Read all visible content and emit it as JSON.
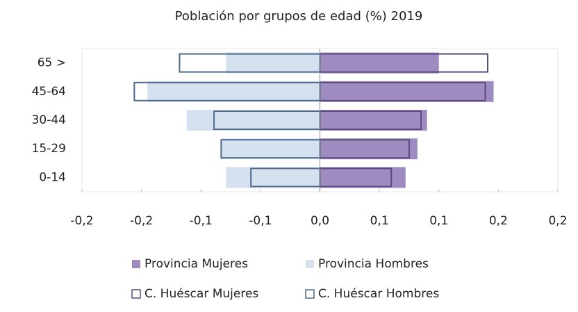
{
  "chart_data": {
    "type": "bar",
    "title": "Población por grupos de edad (%) 2019",
    "categories": [
      "65 >",
      "45-64",
      "30-44",
      "15-29",
      "0-14"
    ],
    "series": [
      {
        "name": "Provincia Mujeres",
        "color": "#9e8cc0",
        "values": [
          0.1,
          0.146,
          0.09,
          0.082,
          0.072
        ]
      },
      {
        "name": "Provincia Hombres",
        "color": "#d6e1f0",
        "values": [
          -0.079,
          -0.145,
          -0.112,
          -0.083,
          -0.079
        ]
      },
      {
        "name": "C. Huéscar Mujeres",
        "color": "#5b4a7e",
        "values": [
          0.141,
          0.139,
          0.085,
          0.075,
          0.06
        ]
      },
      {
        "name": "C. Huéscar Hombres",
        "color": "#4e6a8c",
        "values": [
          -0.118,
          -0.156,
          -0.089,
          -0.083,
          -0.058
        ]
      }
    ],
    "xlim": [
      -0.2,
      0.2
    ],
    "xticks": [
      {
        "value": -0.2,
        "label": "-0,2"
      },
      {
        "value": -0.15,
        "label": "-0,2"
      },
      {
        "value": -0.1,
        "label": "-0,1"
      },
      {
        "value": -0.05,
        "label": "-0,1"
      },
      {
        "value": 0,
        "label": "0,0"
      },
      {
        "value": 0.05,
        "label": "0,1"
      },
      {
        "value": 0.1,
        "label": "0,1"
      },
      {
        "value": 0.15,
        "label": "0,2"
      },
      {
        "value": 0.2,
        "label": "0,2"
      }
    ]
  }
}
